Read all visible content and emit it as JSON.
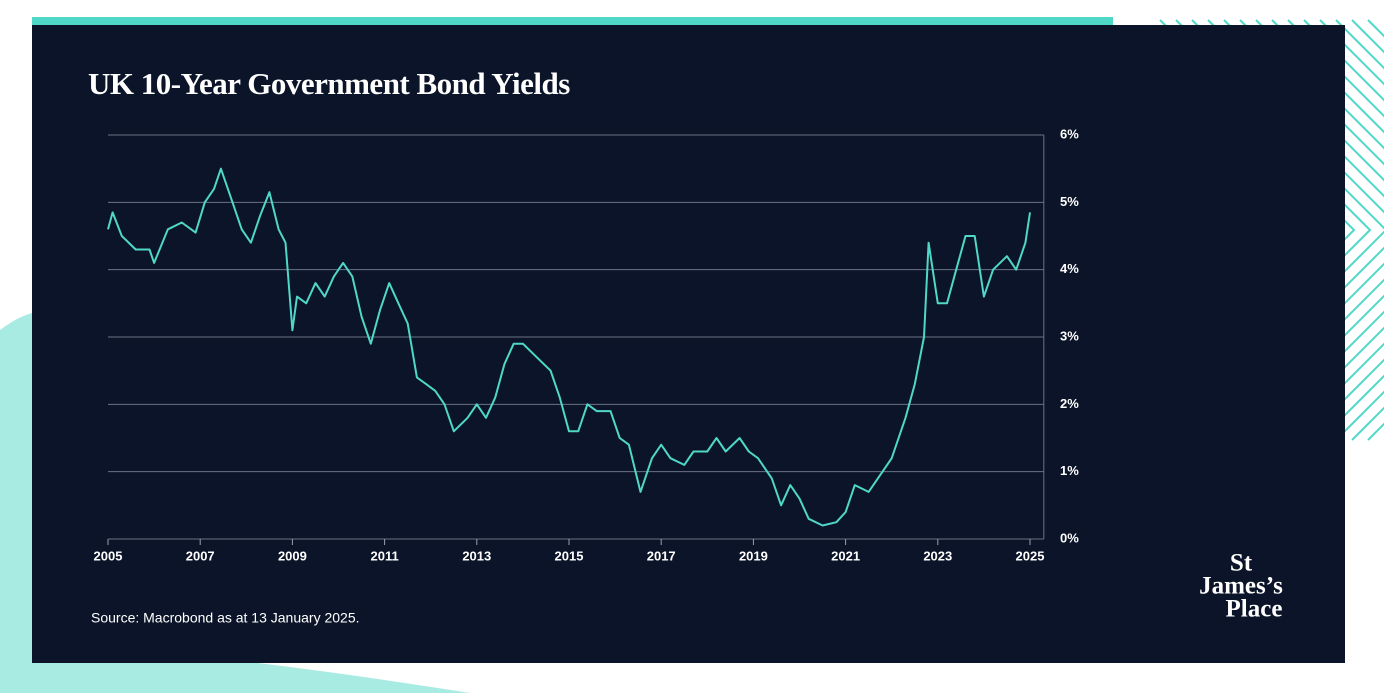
{
  "chart_data": {
    "type": "line",
    "title": "UK 10-Year Government Bond Yields",
    "source": "Source: Macrobond as at 13 January 2025.",
    "logo": [
      "St",
      "James’s",
      "Place"
    ],
    "color": "#4fd8c8",
    "x": [
      2005.0,
      2005.1,
      2005.3,
      2005.6,
      2005.9,
      2006.0,
      2006.3,
      2006.6,
      2006.9,
      2007.1,
      2007.3,
      2007.45,
      2007.7,
      2007.9,
      2008.1,
      2008.3,
      2008.5,
      2008.7,
      2008.85,
      2009.0,
      2009.1,
      2009.3,
      2009.5,
      2009.7,
      2009.9,
      2010.1,
      2010.3,
      2010.5,
      2010.7,
      2010.9,
      2011.1,
      2011.3,
      2011.5,
      2011.7,
      2011.9,
      2012.1,
      2012.3,
      2012.5,
      2012.8,
      2013.0,
      2013.2,
      2013.4,
      2013.6,
      2013.8,
      2014.0,
      2014.3,
      2014.6,
      2014.8,
      2015.0,
      2015.2,
      2015.4,
      2015.6,
      2015.9,
      2016.1,
      2016.3,
      2016.55,
      2016.8,
      2017.0,
      2017.2,
      2017.5,
      2017.7,
      2018.0,
      2018.2,
      2018.4,
      2018.7,
      2018.9,
      2019.1,
      2019.4,
      2019.6,
      2019.8,
      2020.0,
      2020.2,
      2020.5,
      2020.8,
      2021.0,
      2021.2,
      2021.5,
      2021.8,
      2022.0,
      2022.3,
      2022.5,
      2022.7,
      2022.8,
      2023.0,
      2023.2,
      2023.4,
      2023.6,
      2023.8,
      2024.0,
      2024.2,
      2024.5,
      2024.7,
      2024.9,
      2025.0
    ],
    "values": [
      4.6,
      4.85,
      4.5,
      4.3,
      4.3,
      4.1,
      4.6,
      4.7,
      4.55,
      5.0,
      5.2,
      5.5,
      5.0,
      4.6,
      4.4,
      4.8,
      5.15,
      4.6,
      4.4,
      3.1,
      3.6,
      3.5,
      3.8,
      3.6,
      3.9,
      4.1,
      3.9,
      3.3,
      2.9,
      3.4,
      3.8,
      3.5,
      3.2,
      2.4,
      2.3,
      2.2,
      2.0,
      1.6,
      1.8,
      2.0,
      1.8,
      2.1,
      2.6,
      2.9,
      2.9,
      2.7,
      2.5,
      2.1,
      1.6,
      1.6,
      2.0,
      1.9,
      1.9,
      1.5,
      1.4,
      0.7,
      1.2,
      1.4,
      1.2,
      1.1,
      1.3,
      1.3,
      1.5,
      1.3,
      1.5,
      1.3,
      1.2,
      0.9,
      0.5,
      0.8,
      0.6,
      0.3,
      0.2,
      0.25,
      0.4,
      0.8,
      0.7,
      1.0,
      1.2,
      1.8,
      2.3,
      3.0,
      4.4,
      3.5,
      3.5,
      4.0,
      4.5,
      4.5,
      3.6,
      4.0,
      4.2,
      4.0,
      4.4,
      4.85
    ],
    "xlim": [
      2005,
      2025.3
    ],
    "xticks": [
      2005,
      2007,
      2009,
      2011,
      2013,
      2015,
      2017,
      2019,
      2021,
      2023,
      2025
    ],
    "ylim": [
      0,
      6
    ],
    "yticks": [
      {
        "value": 0,
        "label": "0%"
      },
      {
        "value": 1,
        "label": "1%"
      },
      {
        "value": 2,
        "label": "2%"
      },
      {
        "value": 3,
        "label": "3%"
      },
      {
        "value": 4,
        "label": "4%"
      },
      {
        "value": 5,
        "label": "5%"
      },
      {
        "value": 6,
        "label": "6%"
      }
    ],
    "grid": true
  }
}
